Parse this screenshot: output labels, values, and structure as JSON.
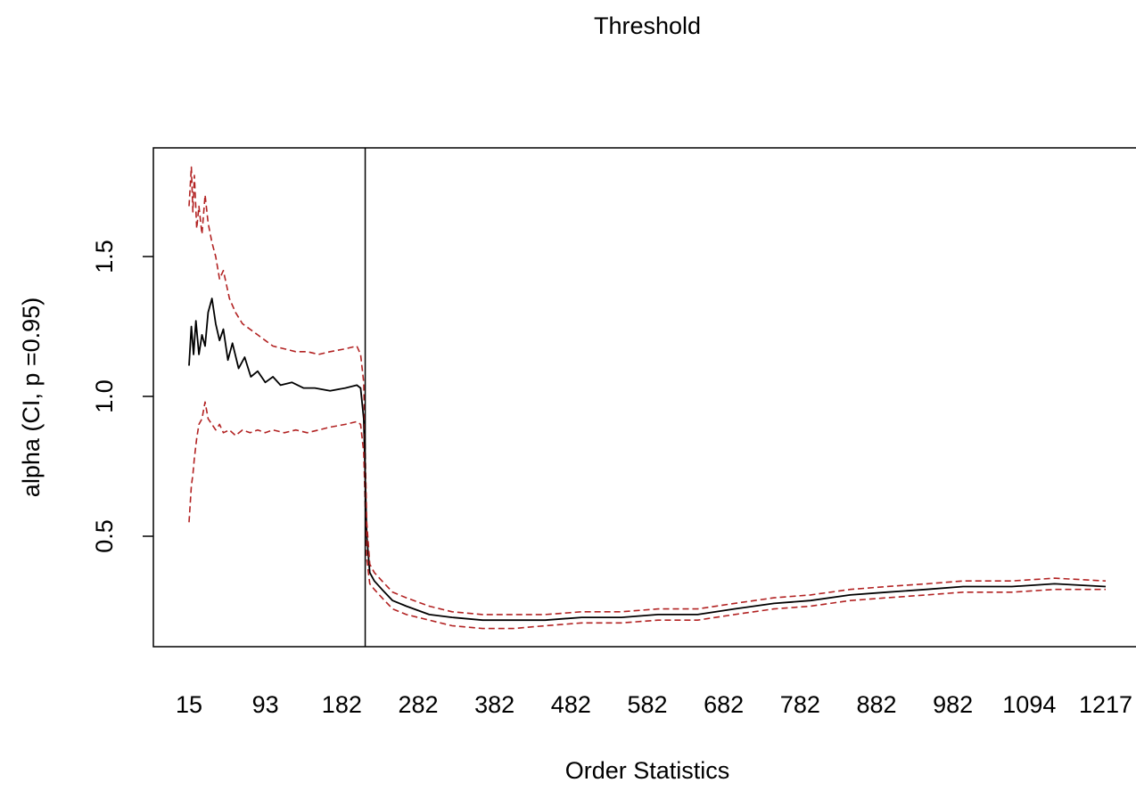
{
  "chart_data": {
    "type": "line",
    "title": "Threshold",
    "xlabel": "Order Statistics",
    "ylabel": "alpha (CI, p =0.95)",
    "x_tick_labels": [
      "15",
      "93",
      "182",
      "282",
      "382",
      "482",
      "582",
      "682",
      "782",
      "882",
      "982",
      "1094",
      "1217"
    ],
    "y_ticks": [
      0.5,
      1.0,
      1.5
    ],
    "y_tick_labels": [
      "0.5",
      "1.0",
      "1.5"
    ],
    "xlim": [
      0,
      1250
    ],
    "ylim": [
      0.12,
      1.88
    ],
    "threshold_x": 246,
    "grid": false,
    "series": [
      {
        "role": "estimate",
        "color": "#000000",
        "dash": "solid",
        "x": [
          15,
          18,
          21,
          24,
          28,
          32,
          36,
          40,
          45,
          50,
          55,
          60,
          66,
          72,
          80,
          88,
          96,
          105,
          115,
          125,
          135,
          150,
          165,
          180,
          200,
          220,
          235,
          240,
          244,
          248,
          252,
          258,
          268,
          282,
          300,
          330,
          360,
          400,
          440,
          482,
          530,
          582,
          630,
          682,
          730,
          782,
          830,
          882,
          930,
          982,
          1030,
          1094,
          1150,
          1217
        ],
        "y": [
          1.11,
          1.25,
          1.15,
          1.27,
          1.15,
          1.22,
          1.18,
          1.3,
          1.35,
          1.26,
          1.2,
          1.24,
          1.13,
          1.19,
          1.1,
          1.14,
          1.07,
          1.09,
          1.05,
          1.07,
          1.04,
          1.05,
          1.03,
          1.03,
          1.02,
          1.03,
          1.04,
          1.03,
          0.92,
          0.5,
          0.37,
          0.34,
          0.31,
          0.27,
          0.25,
          0.22,
          0.21,
          0.2,
          0.2,
          0.2,
          0.21,
          0.21,
          0.22,
          0.22,
          0.24,
          0.26,
          0.27,
          0.29,
          0.3,
          0.31,
          0.32,
          0.32,
          0.33,
          0.32
        ]
      },
      {
        "role": "upper CI",
        "color": "#b22222",
        "dash": "dashed",
        "x": [
          15,
          18,
          20,
          22,
          25,
          28,
          32,
          36,
          40,
          45,
          50,
          55,
          60,
          68,
          76,
          85,
          95,
          105,
          115,
          125,
          140,
          155,
          170,
          185,
          200,
          220,
          235,
          240,
          244,
          248,
          252,
          258,
          268,
          282,
          300,
          330,
          360,
          400,
          440,
          482,
          530,
          582,
          630,
          682,
          730,
          782,
          830,
          882,
          930,
          982,
          1030,
          1094,
          1150,
          1217
        ],
        "y": [
          1.68,
          1.82,
          1.66,
          1.79,
          1.6,
          1.68,
          1.58,
          1.72,
          1.62,
          1.55,
          1.5,
          1.42,
          1.45,
          1.35,
          1.3,
          1.26,
          1.24,
          1.22,
          1.2,
          1.18,
          1.17,
          1.16,
          1.16,
          1.15,
          1.16,
          1.17,
          1.18,
          1.15,
          1.05,
          0.55,
          0.4,
          0.37,
          0.34,
          0.3,
          0.28,
          0.25,
          0.23,
          0.22,
          0.22,
          0.22,
          0.23,
          0.23,
          0.24,
          0.24,
          0.26,
          0.28,
          0.29,
          0.31,
          0.32,
          0.33,
          0.34,
          0.34,
          0.35,
          0.34
        ]
      },
      {
        "role": "lower CI",
        "color": "#b22222",
        "dash": "dashed",
        "x": [
          15,
          18,
          20,
          22,
          25,
          28,
          32,
          36,
          40,
          45,
          50,
          55,
          60,
          68,
          76,
          85,
          95,
          105,
          115,
          125,
          140,
          155,
          170,
          185,
          200,
          220,
          235,
          240,
          244,
          248,
          252,
          258,
          268,
          282,
          300,
          330,
          360,
          400,
          440,
          482,
          530,
          582,
          630,
          682,
          730,
          782,
          830,
          882,
          930,
          982,
          1030,
          1094,
          1150,
          1217
        ],
        "y": [
          0.55,
          0.68,
          0.72,
          0.78,
          0.85,
          0.9,
          0.92,
          0.98,
          0.92,
          0.9,
          0.88,
          0.9,
          0.87,
          0.88,
          0.86,
          0.88,
          0.87,
          0.88,
          0.87,
          0.88,
          0.87,
          0.88,
          0.87,
          0.88,
          0.89,
          0.9,
          0.91,
          0.9,
          0.8,
          0.42,
          0.33,
          0.31,
          0.28,
          0.24,
          0.22,
          0.2,
          0.18,
          0.17,
          0.17,
          0.18,
          0.19,
          0.19,
          0.2,
          0.2,
          0.22,
          0.24,
          0.25,
          0.27,
          0.28,
          0.29,
          0.3,
          0.3,
          0.31,
          0.31
        ]
      }
    ]
  }
}
